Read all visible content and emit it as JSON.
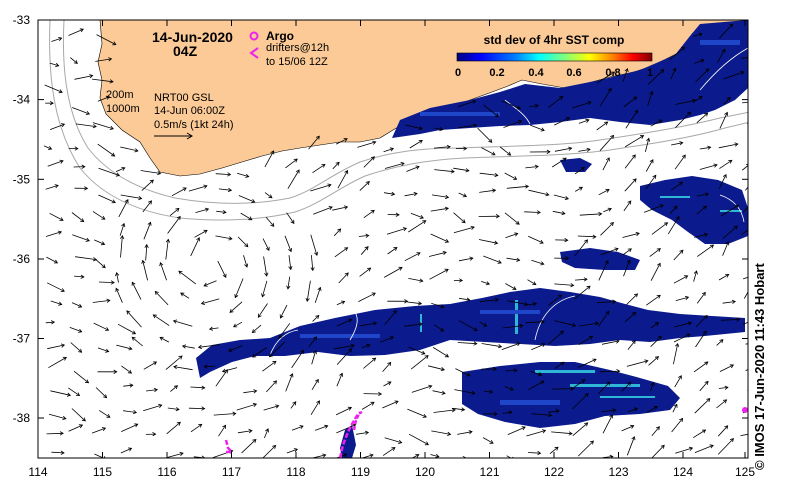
{
  "map": {
    "date": "14-Jun-2020",
    "time": "04Z",
    "credit": "© IMOS 17-Jun-2020 11:43 Hobart",
    "x_ticks": [
      "114",
      "115",
      "116",
      "117",
      "118",
      "119",
      "120",
      "121",
      "122",
      "123",
      "124",
      "125"
    ],
    "y_ticks": [
      "-33",
      "-34",
      "-35",
      "-36",
      "-37",
      "-38"
    ],
    "lon_range": [
      114,
      125
    ],
    "lat_range": [
      -38.5,
      -33
    ]
  },
  "legend": {
    "argo_label": "Argo",
    "drifters_line1": "drifters@12h",
    "drifters_line2": "to 15/06 12Z",
    "argo_color": "#ee22ee",
    "drifter_color": "#ee22ee"
  },
  "info": {
    "iso_200": "200m",
    "iso_1000": "1000m",
    "product": "NRT00 GSL",
    "analysis_time": "14-Jun 06:00Z",
    "velocity_scale": "0.5m/s (1kt 24h)"
  },
  "colorbar": {
    "title": "std dev of 4hr SST comp",
    "ticks": [
      "0",
      "0.2",
      "0.4",
      "0.6",
      "0.8",
      "1"
    ],
    "colors": [
      "#00007f",
      "#0000ff",
      "#007fff",
      "#00ffff",
      "#7fff7f",
      "#ffff00",
      "#ff7f00",
      "#ff0000",
      "#7f0000"
    ]
  },
  "colors": {
    "land": "#fbca96",
    "sst_low": "#0b1a8c",
    "sst_mid": "#1f45c8",
    "sst_high": "#2fb6d6",
    "contour": "#a8a8a8"
  }
}
